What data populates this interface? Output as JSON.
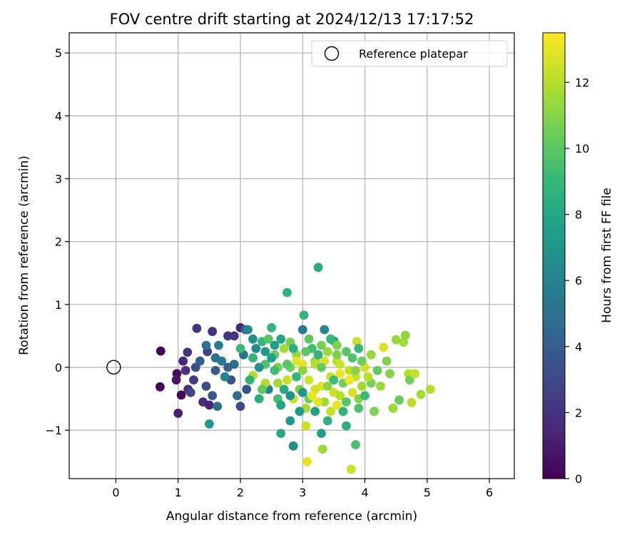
{
  "chart_data": {
    "type": "scatter",
    "title": "FOV centre drift starting at 2024/12/13 17:17:52",
    "xlabel": "Angular distance from reference (arcmin)",
    "ylabel": "Rotation from reference (arcmin)",
    "xlim": [
      -0.75,
      6.4
    ],
    "ylim": [
      -1.77,
      5.32
    ],
    "xticks": [
      0,
      1,
      2,
      3,
      4,
      5,
      6
    ],
    "yticks": [
      -1,
      0,
      1,
      2,
      3,
      4,
      5
    ],
    "xtick_labels": [
      "0",
      "1",
      "2",
      "3",
      "4",
      "5",
      "6"
    ],
    "ytick_labels": [
      "−1",
      "0",
      "1",
      "2",
      "3",
      "4",
      "5"
    ],
    "grid": true,
    "legend": {
      "placement": "upper right",
      "entries": [
        "Reference platepar"
      ]
    },
    "reference_point": {
      "label": "Reference platepar",
      "x": 0,
      "y": 0,
      "marker": "open-circle"
    },
    "colorbar": {
      "label": "Hours from first FF file",
      "range": [
        0,
        13.5
      ],
      "ticks": [
        0,
        2,
        4,
        6,
        8,
        10,
        12
      ],
      "tick_labels": [
        "0",
        "2",
        "4",
        "6",
        "8",
        "10",
        "12"
      ],
      "colormap": "viridis"
    },
    "colormap_stops": [
      "#440154",
      "#482878",
      "#3e4989",
      "#31688e",
      "#26828e",
      "#1f9e89",
      "#35b779",
      "#6ece58",
      "#b5de2b",
      "#fde725"
    ],
    "points": [
      [
        0.72,
        0.26,
        0.1
      ],
      [
        0.71,
        -0.31,
        0.1
      ],
      [
        0.98,
        -0.1,
        0.5
      ],
      [
        0.97,
        -0.2,
        0.8
      ],
      [
        1.0,
        -0.73,
        1.2
      ],
      [
        1.05,
        -0.44,
        0.2
      ],
      [
        1.08,
        0.1,
        1.5
      ],
      [
        1.12,
        -0.05,
        1.9
      ],
      [
        1.15,
        0.24,
        2.2
      ],
      [
        1.16,
        -0.35,
        1.7
      ],
      [
        1.25,
        -0.2,
        2.4
      ],
      [
        1.3,
        0.62,
        2.0
      ],
      [
        1.4,
        -0.55,
        1.8
      ],
      [
        1.47,
        0.25,
        2.5
      ],
      [
        1.5,
        -0.6,
        1.4
      ],
      [
        1.55,
        0.57,
        1.9
      ],
      [
        1.6,
        -0.05,
        3.8
      ],
      [
        1.63,
        -0.62,
        5.1
      ],
      [
        1.5,
        -0.9,
        7.2
      ],
      [
        1.7,
        0.1,
        5.5
      ],
      [
        1.8,
        0.5,
        2.1
      ],
      [
        1.85,
        -0.2,
        3.5
      ],
      [
        1.9,
        0.5,
        2.2
      ],
      [
        2.0,
        0.63,
        1.4
      ],
      [
        2.0,
        -0.62,
        3.0
      ],
      [
        2.08,
        0.6,
        4.1
      ],
      [
        2.12,
        0.6,
        6.1
      ],
      [
        2.2,
        -0.13,
        11.8
      ],
      [
        2.35,
        0.41,
        9.0
      ],
      [
        2.5,
        0.63,
        8.8
      ],
      [
        2.45,
        -0.35,
        5.8
      ],
      [
        2.6,
        -0.5,
        9.5
      ],
      [
        2.75,
        1.19,
        8.6
      ],
      [
        2.8,
        0.0,
        10.6
      ],
      [
        2.65,
        -1.05,
        8.1
      ],
      [
        2.8,
        -0.85,
        7.2
      ],
      [
        2.85,
        -1.25,
        6.6
      ],
      [
        3.0,
        0.6,
        5.5
      ],
      [
        3.02,
        0.83,
        8.8
      ],
      [
        3.05,
        -0.93,
        12.5
      ],
      [
        3.1,
        -0.5,
        10.5
      ],
      [
        3.2,
        0.1,
        11.4
      ],
      [
        3.25,
        1.59,
        8.3
      ],
      [
        3.3,
        -1.05,
        7.5
      ],
      [
        3.32,
        -1.3,
        11.5
      ],
      [
        3.35,
        0.6,
        6.2
      ],
      [
        3.45,
        -0.7,
        12.3
      ],
      [
        3.5,
        0.42,
        7.8
      ],
      [
        3.6,
        -0.1,
        13.2
      ],
      [
        3.7,
        -0.93,
        8.5
      ],
      [
        3.78,
        -1.62,
        12.5
      ],
      [
        3.85,
        -1.23,
        9.5
      ],
      [
        3.87,
        0.41,
        12.4
      ],
      [
        3.9,
        -0.5,
        11.0
      ],
      [
        4.0,
        0.0,
        12.6
      ],
      [
        4.1,
        0.2,
        11.4
      ],
      [
        4.15,
        -0.7,
        10.8
      ],
      [
        4.25,
        -0.3,
        11.4
      ],
      [
        4.3,
        0.32,
        12.8
      ],
      [
        4.4,
        -0.1,
        11.0
      ],
      [
        4.45,
        -0.65,
        11.5
      ],
      [
        4.5,
        0.44,
        11.4
      ],
      [
        4.55,
        -0.52,
        10.4
      ],
      [
        4.62,
        0.4,
        11.6
      ],
      [
        4.65,
        0.51,
        11.2
      ],
      [
        4.7,
        -0.1,
        12.0
      ],
      [
        4.72,
        -0.2,
        10.6
      ],
      [
        4.75,
        -0.56,
        12.1
      ],
      [
        4.8,
        -0.1,
        12.3
      ],
      [
        4.9,
        -0.43,
        11.7
      ],
      [
        5.05,
        -0.35,
        12.0
      ],
      [
        3.07,
        -1.5,
        13.0
      ],
      [
        2.1,
        -0.35,
        3.5
      ],
      [
        1.95,
        -0.45,
        4.8
      ],
      [
        2.3,
        -0.5,
        8.4
      ],
      [
        2.2,
        0.15,
        8.9
      ],
      [
        2.4,
        0.05,
        9.6
      ],
      [
        2.55,
        0.2,
        10.4
      ],
      [
        2.7,
        0.3,
        11.6
      ],
      [
        2.9,
        0.2,
        11.4
      ],
      [
        3.1,
        -0.2,
        12.6
      ],
      [
        3.3,
        -0.3,
        12.9
      ],
      [
        3.4,
        0.25,
        11.4
      ],
      [
        3.55,
        0.1,
        12.1
      ],
      [
        3.65,
        -0.25,
        10.6
      ],
      [
        3.8,
        0.15,
        9.7
      ],
      [
        3.95,
        -0.3,
        11.6
      ],
      [
        2.6,
        0.0,
        10.7
      ],
      [
        2.75,
        -0.2,
        12.4
      ],
      [
        2.95,
        -0.35,
        10.8
      ],
      [
        3.15,
        0.3,
        9.3
      ],
      [
        3.35,
        -0.55,
        11.5
      ],
      [
        3.5,
        -0.4,
        12.5
      ],
      [
        3.75,
        -0.05,
        12.2
      ],
      [
        2.4,
        -0.25,
        11.9
      ],
      [
        3.0,
        0.05,
        13.0
      ],
      [
        3.2,
        -0.35,
        12.6
      ],
      [
        3.45,
        -0.15,
        12.5
      ],
      [
        3.6,
        -0.45,
        12.0
      ],
      [
        3.85,
        -0.15,
        12.3
      ],
      [
        2.85,
        -0.5,
        12.4
      ],
      [
        3.05,
        -0.65,
        11.7
      ],
      [
        3.25,
        -0.55,
        12.9
      ],
      [
        3.55,
        0.35,
        10.8
      ],
      [
        2.15,
        -0.2,
        8.7
      ],
      [
        1.75,
        -0.15,
        6.2
      ],
      [
        1.6,
        0.15,
        5.3
      ],
      [
        1.9,
        0.05,
        4.7
      ],
      [
        2.25,
        0.3,
        6.5
      ],
      [
        2.55,
        0.35,
        7.6
      ],
      [
        2.65,
        -0.6,
        7.8
      ],
      [
        2.95,
        -0.7,
        7.4
      ],
      [
        3.4,
        -0.85,
        8.6
      ],
      [
        3.65,
        -0.7,
        8.8
      ],
      [
        3.9,
        -0.65,
        9.6
      ],
      [
        4.0,
        -0.45,
        9.1
      ],
      [
        4.2,
        -0.05,
        10.2
      ],
      [
        4.35,
        0.1,
        10.9
      ],
      [
        1.35,
        0.1,
        4.0
      ],
      [
        1.45,
        -0.3,
        3.2
      ],
      [
        1.2,
        -0.4,
        2.8
      ],
      [
        1.28,
        0.0,
        3.3
      ],
      [
        1.55,
        -0.45,
        3.6
      ],
      [
        1.8,
        0.0,
        4.3
      ],
      [
        2.05,
        0.2,
        5.0
      ],
      [
        2.3,
        0.0,
        6.8
      ],
      [
        2.5,
        0.15,
        7.5
      ],
      [
        2.7,
        -0.35,
        8.2
      ],
      [
        2.9,
        -0.15,
        8.9
      ],
      [
        3.1,
        0.45,
        10.2
      ],
      [
        3.3,
        0.35,
        10.6
      ],
      [
        3.5,
        -0.2,
        9.2
      ],
      [
        3.7,
        0.25,
        10.0
      ],
      [
        3.95,
        0.1,
        10.4
      ],
      [
        4.1,
        -0.25,
        10.6
      ],
      [
        2.0,
        0.3,
        9.1
      ],
      [
        2.45,
        0.45,
        9.9
      ],
      [
        2.8,
        0.4,
        10.7
      ],
      [
        3.0,
        -0.05,
        11.2
      ],
      [
        3.2,
        0.05,
        11.9
      ],
      [
        3.4,
        -0.3,
        11.1
      ],
      [
        3.6,
        0.05,
        12.4
      ],
      [
        3.8,
        -0.4,
        12.8
      ],
      [
        4.05,
        -0.15,
        12.1
      ],
      [
        2.35,
        -0.35,
        10.2
      ],
      [
        2.6,
        -0.25,
        11.6
      ],
      [
        2.9,
        0.1,
        12.9
      ],
      [
        3.15,
        -0.45,
        13.1
      ],
      [
        3.35,
        0.1,
        12.7
      ],
      [
        3.55,
        -0.6,
        13.0
      ],
      [
        3.75,
        -0.2,
        13.2
      ],
      [
        2.2,
        0.45,
        6.7
      ],
      [
        1.65,
        0.35,
        5.8
      ],
      [
        1.45,
        0.35,
        5.1
      ],
      [
        2.4,
        0.25,
        7.1
      ],
      [
        2.65,
        0.45,
        7.9
      ],
      [
        2.85,
        0.3,
        8.4
      ],
      [
        3.25,
        0.2,
        8.7
      ],
      [
        3.45,
        0.45,
        9.0
      ],
      [
        3.7,
        -0.55,
        9.9
      ],
      [
        3.9,
        0.3,
        9.0
      ],
      [
        2.55,
        -0.05,
        9.3
      ],
      [
        2.75,
        0.05,
        9.9
      ],
      [
        3.05,
        0.25,
        10.0
      ],
      [
        3.3,
        0.0,
        10.3
      ],
      [
        3.55,
        0.2,
        10.8
      ],
      [
        3.85,
        -0.05,
        11.1
      ],
      [
        2.8,
        -0.45,
        6.9
      ],
      [
        3.0,
        -0.4,
        7.1
      ],
      [
        3.2,
        -0.7,
        7.7
      ]
    ]
  }
}
